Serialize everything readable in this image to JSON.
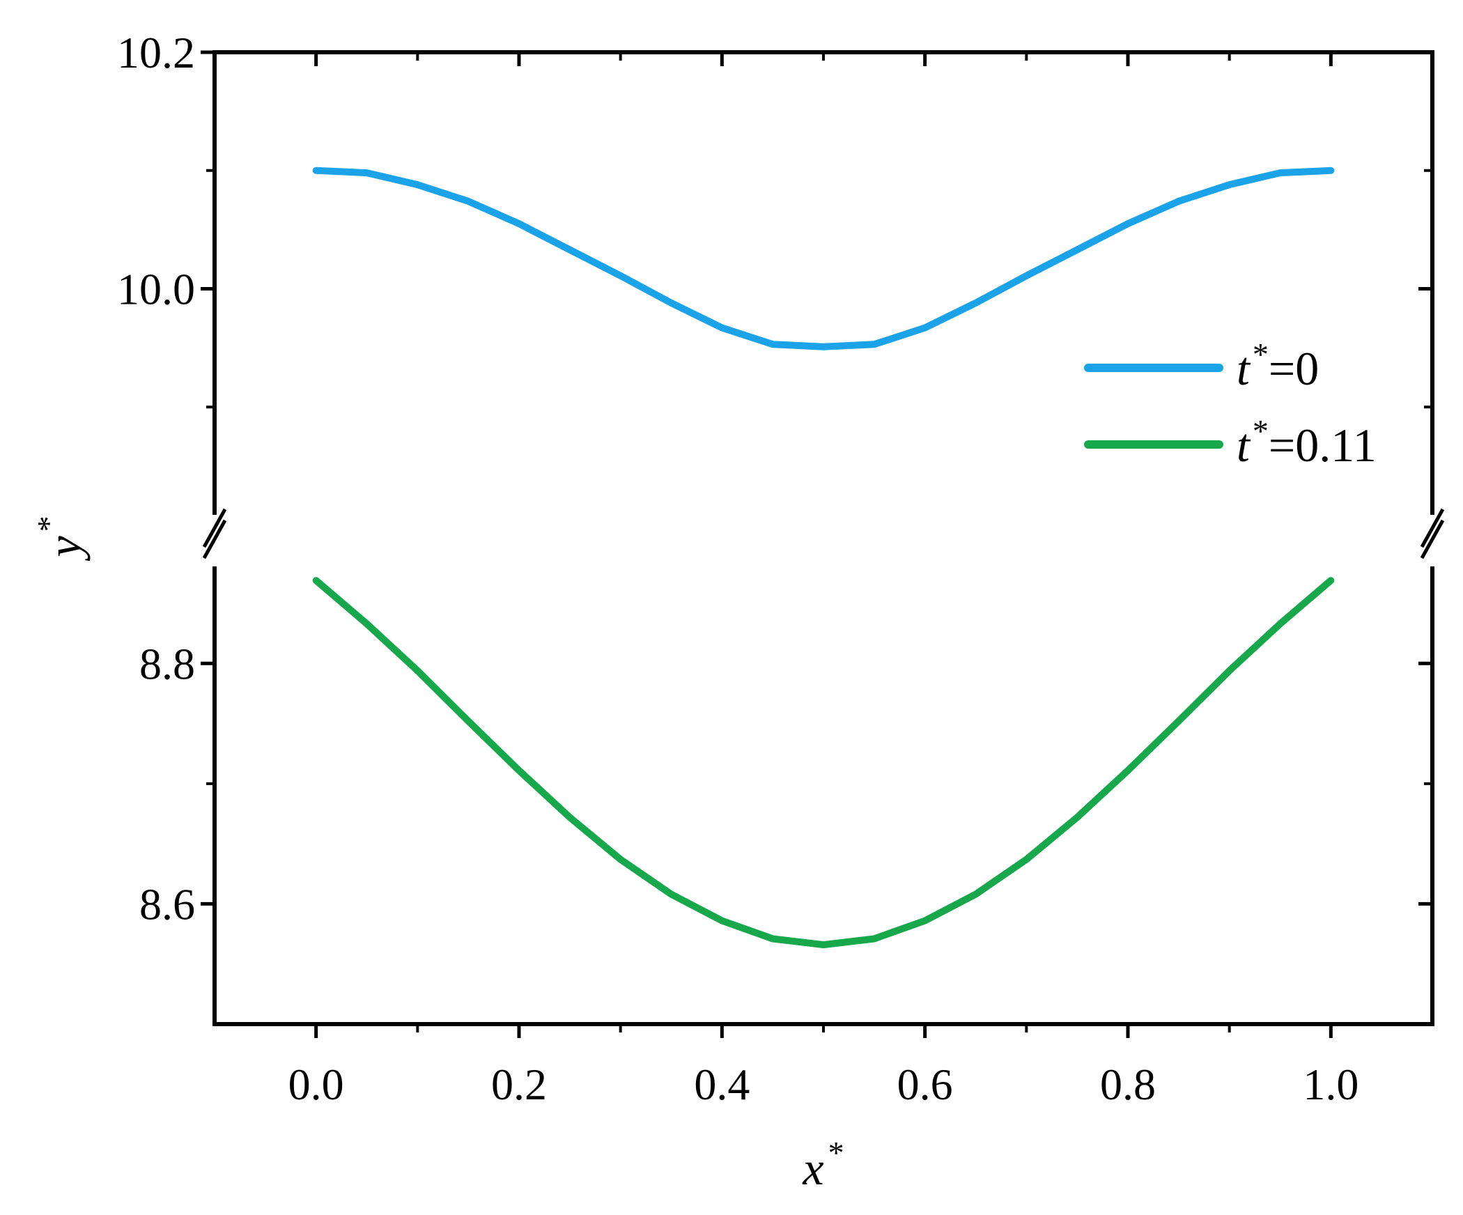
{
  "chart_data": {
    "type": "line",
    "xlabel": {
      "base": "x",
      "sup": "*"
    },
    "ylabel": {
      "base": "y",
      "sup": "*"
    },
    "xlim": [
      -0.1,
      1.1
    ],
    "x_ticks": [
      {
        "value": 0.0,
        "label": "0.0"
      },
      {
        "value": 0.2,
        "label": "0.2"
      },
      {
        "value": 0.4,
        "label": "0.4"
      },
      {
        "value": 0.6,
        "label": "0.6"
      },
      {
        "value": 0.8,
        "label": "0.8"
      },
      {
        "value": 1.0,
        "label": "1.0"
      }
    ],
    "x_minor_ticks": [
      0.1,
      0.3,
      0.5,
      0.7,
      0.9
    ],
    "y_axis_break": true,
    "y_segments": [
      {
        "ylim": [
          9.8,
          10.2
        ],
        "major_ticks": [
          {
            "value": 10.0,
            "label": "10.0"
          },
          {
            "value": 10.2,
            "label": "10.2"
          }
        ],
        "minor_ticks": [
          9.9,
          10.1
        ]
      },
      {
        "ylim": [
          8.5,
          8.89
        ],
        "major_ticks": [
          {
            "value": 8.6,
            "label": "8.6"
          },
          {
            "value": 8.8,
            "label": "8.8"
          }
        ],
        "minor_ticks": [
          8.7
        ]
      }
    ],
    "legend_position": "right",
    "series": [
      {
        "name": {
          "base": "t",
          "sup": "*",
          "suffix": "=0"
        },
        "color": "#1aa3e8",
        "segment": 0,
        "x": [
          0.0,
          0.05,
          0.1,
          0.15,
          0.2,
          0.25,
          0.3,
          0.35,
          0.4,
          0.45,
          0.5,
          0.55,
          0.6,
          0.65,
          0.7,
          0.75,
          0.8,
          0.85,
          0.9,
          0.95,
          1.0
        ],
        "y": [
          10.1,
          10.098,
          10.088,
          10.074,
          10.055,
          10.033,
          10.011,
          9.988,
          9.967,
          9.953,
          9.951,
          9.953,
          9.967,
          9.988,
          10.011,
          10.033,
          10.055,
          10.074,
          10.088,
          10.098,
          10.1
        ]
      },
      {
        "name": {
          "base": "t",
          "sup": "*",
          "suffix": "=0.11"
        },
        "color": "#16a84a",
        "segment": 1,
        "x": [
          0.0,
          0.05,
          0.1,
          0.15,
          0.2,
          0.25,
          0.3,
          0.35,
          0.4,
          0.45,
          0.5,
          0.55,
          0.6,
          0.65,
          0.7,
          0.75,
          0.8,
          0.85,
          0.9,
          0.95,
          1.0
        ],
        "y": [
          8.869,
          8.833,
          8.794,
          8.752,
          8.711,
          8.672,
          8.637,
          8.608,
          8.586,
          8.571,
          8.566,
          8.571,
          8.586,
          8.608,
          8.637,
          8.672,
          8.711,
          8.752,
          8.794,
          8.833,
          8.869
        ]
      }
    ]
  }
}
